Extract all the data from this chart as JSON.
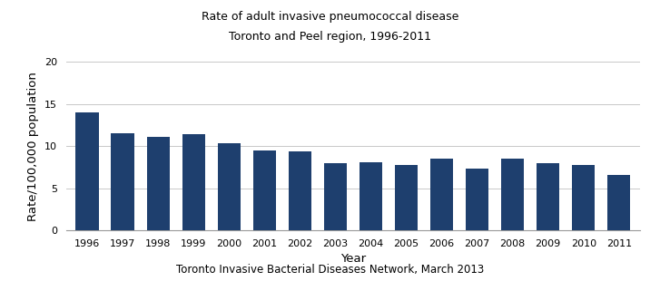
{
  "title_line1": "Rate of adult invasive pneumococcal disease",
  "title_line2": "Toronto and Peel region, 1996-2011",
  "xlabel": "Year",
  "ylabel": "Rate/100,000 population",
  "footer": "Toronto Invasive Bacterial Diseases Network, March 2013",
  "years": [
    1996,
    1997,
    1998,
    1999,
    2000,
    2001,
    2002,
    2003,
    2004,
    2005,
    2006,
    2007,
    2008,
    2009,
    2010,
    2011
  ],
  "values": [
    14.0,
    11.5,
    11.1,
    11.4,
    10.3,
    9.5,
    9.4,
    8.0,
    8.1,
    7.8,
    8.5,
    7.3,
    8.5,
    8.0,
    7.8,
    6.6
  ],
  "bar_color": "#1e3f6e",
  "ylim": [
    0,
    20
  ],
  "yticks": [
    0,
    5,
    10,
    15,
    20
  ],
  "title_fontsize": 9,
  "axis_label_fontsize": 9.5,
  "tick_fontsize": 8,
  "footer_fontsize": 8.5,
  "background_color": "#ffffff",
  "grid_color": "#c8c8c8"
}
